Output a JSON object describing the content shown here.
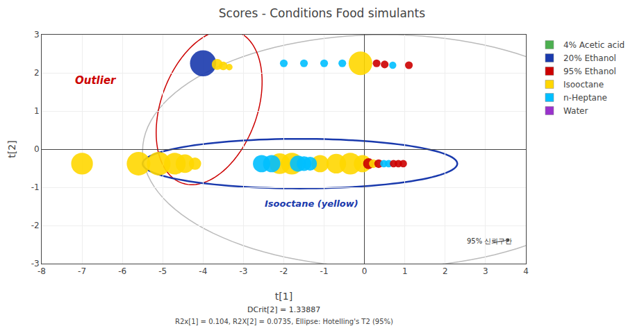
{
  "chart_data": {
    "type": "scatter",
    "title": "Scores - Conditions Food simulants",
    "subtitle": "DCrit[2] = 1.33887",
    "caption": "R2x[1] = 0.104, R2X[2] = 0.0735, Ellipse: Hotelling's T2 (95%)",
    "xlabel": "t[1]",
    "ylabel": "t[2]",
    "xlim": [
      -8,
      4
    ],
    "ylim": [
      -3,
      3
    ],
    "xticks": [
      -8,
      -7,
      -6,
      -5,
      -4,
      -3,
      -2,
      -1,
      0,
      1,
      2,
      3,
      4
    ],
    "yticks": [
      -3,
      -2,
      -1,
      0,
      1,
      2,
      3
    ],
    "grid": true,
    "legend": "upper right",
    "legend_items": [
      {
        "label": "4% Acetic acid",
        "color": "#4caf50"
      },
      {
        "label": "20% Ethanol",
        "color": "#1a3aad"
      },
      {
        "label": "95% Ethanol",
        "color": "#cc0000"
      },
      {
        "label": "Isooctane",
        "color": "#ffd700"
      },
      {
        "label": "n-Heptane",
        "color": "#00bfff"
      },
      {
        "label": "Water",
        "color": "#9932cc"
      }
    ],
    "points": [
      {
        "x": -7.0,
        "y": -0.38,
        "color": "#ffd700",
        "size": 2200
      },
      {
        "x": -5.6,
        "y": -0.38,
        "color": "#ffd700",
        "size": 2600
      },
      {
        "x": -5.1,
        "y": -0.38,
        "color": "#ffd700",
        "size": 2600
      },
      {
        "x": -4.7,
        "y": -0.38,
        "color": "#ffd700",
        "size": 2200
      },
      {
        "x": -4.45,
        "y": -0.38,
        "color": "#ffd700",
        "size": 1600
      },
      {
        "x": -4.2,
        "y": -0.38,
        "color": "#ffd700",
        "size": 700
      },
      {
        "x": -4.0,
        "y": 2.25,
        "color": "#1a3aad",
        "size": 3200
      },
      {
        "x": -3.65,
        "y": 2.22,
        "color": "#ffd700",
        "size": 550
      },
      {
        "x": -3.5,
        "y": 2.18,
        "color": "#ffd700",
        "size": 350
      },
      {
        "x": -3.35,
        "y": 2.15,
        "color": "#ffd700",
        "size": 200
      },
      {
        "x": -2.55,
        "y": -0.38,
        "color": "#00bfff",
        "size": 1400
      },
      {
        "x": -2.3,
        "y": -0.38,
        "color": "#00bfff",
        "size": 1400
      },
      {
        "x": -2.1,
        "y": -0.38,
        "color": "#ffd700",
        "size": 2000
      },
      {
        "x": -1.8,
        "y": -0.38,
        "color": "#ffd700",
        "size": 2200
      },
      {
        "x": -1.65,
        "y": -0.38,
        "color": "#00bfff",
        "size": 1200
      },
      {
        "x": -1.5,
        "y": -0.38,
        "color": "#00bfff",
        "size": 1000
      },
      {
        "x": -1.35,
        "y": -0.38,
        "color": "#00bfff",
        "size": 900
      },
      {
        "x": -1.1,
        "y": -0.38,
        "color": "#ffd700",
        "size": 1400
      },
      {
        "x": -0.7,
        "y": -0.38,
        "color": "#ffd700",
        "size": 1800
      },
      {
        "x": -0.35,
        "y": -0.38,
        "color": "#ffd700",
        "size": 2200
      },
      {
        "x": -0.05,
        "y": -0.38,
        "color": "#ffd700",
        "size": 1400
      },
      {
        "x": -2.0,
        "y": 2.25,
        "color": "#00bfff",
        "size": 280
      },
      {
        "x": -1.5,
        "y": 2.25,
        "color": "#00bfff",
        "size": 280
      },
      {
        "x": -1.0,
        "y": 2.25,
        "color": "#00bfff",
        "size": 280
      },
      {
        "x": -0.55,
        "y": 2.25,
        "color": "#00bfff",
        "size": 280
      },
      {
        "x": -0.1,
        "y": 2.25,
        "color": "#ffd700",
        "size": 2600
      },
      {
        "x": 0.3,
        "y": 2.25,
        "color": "#cc0000",
        "size": 280
      },
      {
        "x": 0.5,
        "y": 2.22,
        "color": "#cc0000",
        "size": 280
      },
      {
        "x": 0.7,
        "y": 2.2,
        "color": "#00bfff",
        "size": 240
      },
      {
        "x": 1.1,
        "y": 2.2,
        "color": "#cc0000",
        "size": 280
      },
      {
        "x": 0.1,
        "y": -0.38,
        "color": "#cc0000",
        "size": 550
      },
      {
        "x": 0.22,
        "y": -0.38,
        "color": "#ffd700",
        "size": 350
      },
      {
        "x": 0.35,
        "y": -0.38,
        "color": "#cc0000",
        "size": 350
      },
      {
        "x": 0.48,
        "y": -0.38,
        "color": "#00bfff",
        "size": 260
      },
      {
        "x": 0.6,
        "y": -0.38,
        "color": "#00bfff",
        "size": 260
      },
      {
        "x": 0.72,
        "y": -0.38,
        "color": "#cc0000",
        "size": 260
      },
      {
        "x": 0.84,
        "y": -0.38,
        "color": "#cc0000",
        "size": 260
      },
      {
        "x": 0.96,
        "y": -0.38,
        "color": "#cc0000",
        "size": 260
      }
    ],
    "ellipses": [
      {
        "cx": 0.5,
        "cy": -0.05,
        "width": 12.0,
        "height": 6.1,
        "angle": 0,
        "color": "#bbbbbb"
      },
      {
        "cx": -3.85,
        "cy": 1.1,
        "width": 2.4,
        "height": 4.2,
        "angle": -18,
        "color": "#cc0000"
      },
      {
        "cx": -1.6,
        "cy": -0.38,
        "width": 7.8,
        "height": 1.3,
        "angle": 0,
        "color": "#1a3aad"
      }
    ],
    "annotations": [
      {
        "x": -7.2,
        "y": 1.6,
        "text": "Outlier",
        "color": "#cc0000"
      },
      {
        "x": -2.5,
        "y": -1.6,
        "text": "Isooctane (yellow)",
        "color": "#1a3aad"
      },
      {
        "x": 2.5,
        "y": -2.55,
        "text": "95% 신뢰구간",
        "color": "#333333"
      }
    ],
    "marker_point": {
      "x": 3.55,
      "y": -2.38,
      "color": "#555555"
    },
    "connector": {
      "x": [
        3.2,
        3.55
      ],
      "y": [
        -2.45,
        -2.38
      ],
      "color": "#555555"
    }
  }
}
